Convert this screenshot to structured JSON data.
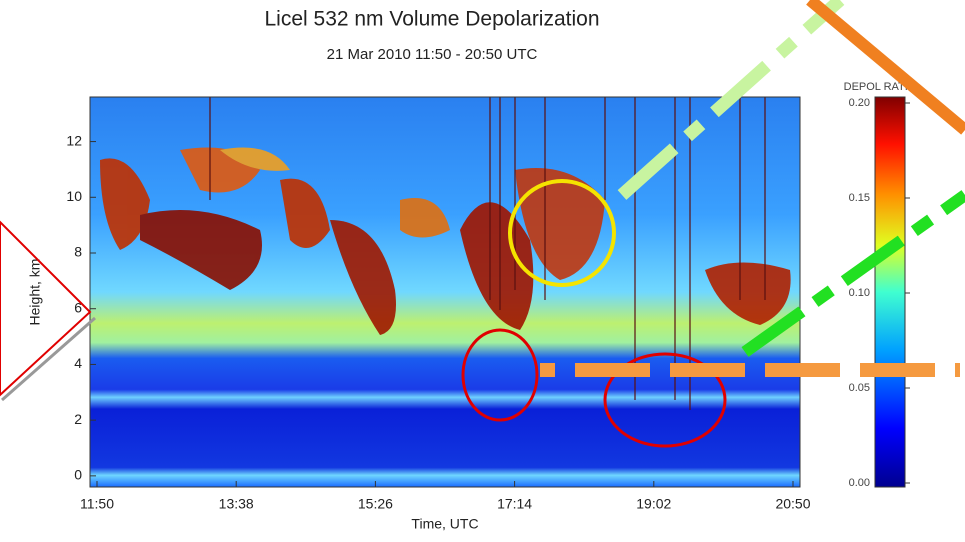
{
  "chart_data": {
    "type": "heatmap",
    "title": "Licel 532 nm Volume Depolarization",
    "subtitle": "21 Mar 2010 11:50 - 20:50 UTC",
    "xlabel": "Time, UTC",
    "ylabel": "Height, km",
    "xticks": [
      "11:50",
      "13:38",
      "15:26",
      "17:14",
      "19:02",
      "20:50"
    ],
    "ylim": [
      -0.4,
      13.6
    ],
    "yticks": [
      0,
      2,
      4,
      6,
      8,
      10,
      12
    ],
    "colorbar": {
      "label": "DEPOL RATIO",
      "lim": [
        0,
        0.2
      ],
      "ticks": [
        {
          "value": 0,
          "label": "0.00"
        },
        0.05,
        {
          "value": 0.1,
          "label": "0.10"
        },
        0.15,
        {
          "value": 0.2,
          "label": "0.20"
        }
      ]
    }
  }
}
